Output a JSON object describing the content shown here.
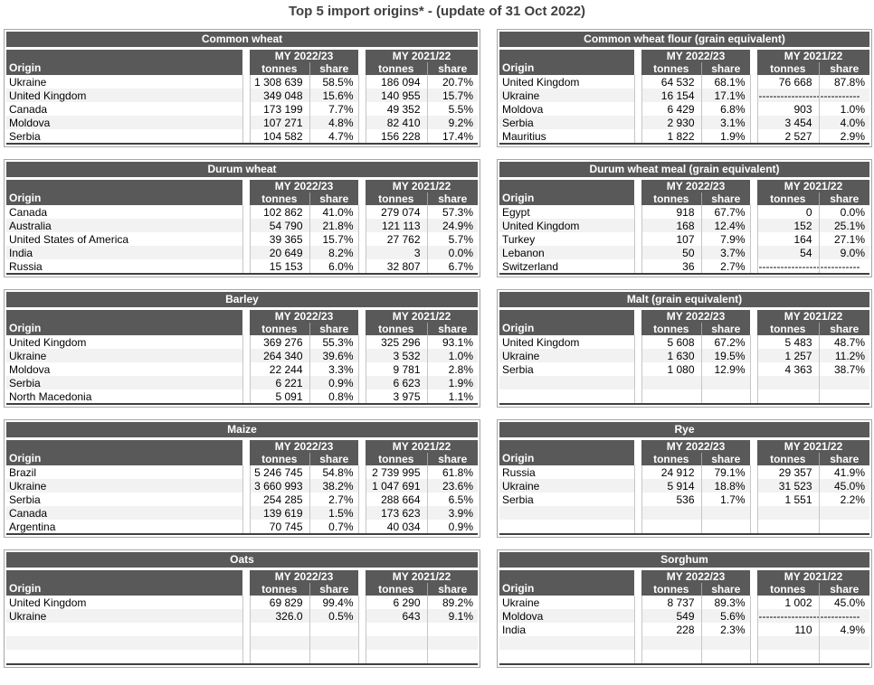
{
  "page": {
    "title": "Top 5 import origins* - (update of 31 Oct 2022)"
  },
  "colors": {
    "header_bg": "#595959",
    "header_text": "#ffffff",
    "alt_row_bg": "#f2f2f2",
    "grid_line": "#c6c6c6",
    "table_bottom_border": "#404040",
    "page_title_text": "#404040"
  },
  "column_headers": {
    "origin": "Origin",
    "year1": "MY 2022/23",
    "year2": "MY 2021/22",
    "tonnes": "tonnes",
    "share": "share"
  },
  "tables": [
    {
      "title": "Common wheat",
      "rows": [
        [
          "Ukraine",
          "1 308 639",
          "58.5%",
          "186 094",
          "20.7%"
        ],
        [
          "United Kingdom",
          "349 048",
          "15.6%",
          "140 955",
          "15.7%"
        ],
        [
          "Canada",
          "173 199",
          "7.7%",
          "49 352",
          "5.5%"
        ],
        [
          "Moldova",
          "107 271",
          "4.8%",
          "82 410",
          "9.2%"
        ],
        [
          "Serbia",
          "104 582",
          "4.7%",
          "156 228",
          "17.4%"
        ]
      ]
    },
    {
      "title": "Common wheat flour (grain equivalent)",
      "rows": [
        [
          "United Kingdom",
          "64 532",
          "68.1%",
          "76 668",
          "87.8%"
        ],
        [
          "Ukraine",
          "16 154",
          "17.1%",
          "-----------------",
          "-----------"
        ],
        [
          "Moldova",
          "6 429",
          "6.8%",
          "903",
          "1.0%"
        ],
        [
          "Serbia",
          "2 930",
          "3.1%",
          "3 454",
          "4.0%"
        ],
        [
          "Mauritius",
          "1 822",
          "1.9%",
          "2 527",
          "2.9%"
        ]
      ]
    },
    {
      "title": "Durum wheat",
      "rows": [
        [
          "Canada",
          "102 862",
          "41.0%",
          "279 074",
          "57.3%"
        ],
        [
          "Australia",
          "54 790",
          "21.8%",
          "121 113",
          "24.9%"
        ],
        [
          "United States of America",
          "39 365",
          "15.7%",
          "27 762",
          "5.7%"
        ],
        [
          "India",
          "20 649",
          "8.2%",
          "3",
          "0.0%"
        ],
        [
          "Russia",
          "15 153",
          "6.0%",
          "32 807",
          "6.7%"
        ]
      ]
    },
    {
      "title": "Durum wheat meal (grain equivalent)",
      "rows": [
        [
          "Egypt",
          "918",
          "67.7%",
          "0",
          "0.0%"
        ],
        [
          "United Kingdom",
          "168",
          "12.4%",
          "152",
          "25.1%"
        ],
        [
          "Turkey",
          "107",
          "7.9%",
          "164",
          "27.1%"
        ],
        [
          "Lebanon",
          "50",
          "3.7%",
          "54",
          "9.0%"
        ],
        [
          "Switzerland",
          "36",
          "2.7%",
          "-----------------",
          "-----------"
        ]
      ]
    },
    {
      "title": "Barley",
      "rows": [
        [
          "United Kingdom",
          "369 276",
          "55.3%",
          "325 296",
          "93.1%"
        ],
        [
          "Ukraine",
          "264 340",
          "39.6%",
          "3 532",
          "1.0%"
        ],
        [
          "Moldova",
          "22 244",
          "3.3%",
          "9 781",
          "2.8%"
        ],
        [
          "Serbia",
          "6 221",
          "0.9%",
          "6 623",
          "1.9%"
        ],
        [
          "North Macedonia",
          "5 091",
          "0.8%",
          "3 975",
          "1.1%"
        ]
      ]
    },
    {
      "title": "Malt (grain equivalent)",
      "rows": [
        [
          "United Kingdom",
          "5 608",
          "67.2%",
          "5 483",
          "48.7%"
        ],
        [
          "Ukraine",
          "1 630",
          "19.5%",
          "1 257",
          "11.2%"
        ],
        [
          "Serbia",
          "1 080",
          "12.9%",
          "4 363",
          "38.7%"
        ],
        [
          "",
          "",
          "",
          "",
          ""
        ],
        [
          "",
          "",
          "",
          "",
          ""
        ]
      ]
    },
    {
      "title": "Maize",
      "rows": [
        [
          "Brazil",
          "5 246 745",
          "54.8%",
          "2 739 995",
          "61.8%"
        ],
        [
          "Ukraine",
          "3 660 993",
          "38.2%",
          "1 047 691",
          "23.6%"
        ],
        [
          "Serbia",
          "254 285",
          "2.7%",
          "288 664",
          "6.5%"
        ],
        [
          "Canada",
          "139 619",
          "1.5%",
          "173 623",
          "3.9%"
        ],
        [
          "Argentina",
          "70 745",
          "0.7%",
          "40 034",
          "0.9%"
        ]
      ]
    },
    {
      "title": "Rye",
      "rows": [
        [
          "Russia",
          "24 912",
          "79.1%",
          "29 357",
          "41.9%"
        ],
        [
          "Ukraine",
          "5 914",
          "18.8%",
          "31 523",
          "45.0%"
        ],
        [
          "Serbia",
          "536",
          "1.7%",
          "1 551",
          "2.2%"
        ],
        [
          "",
          "",
          "",
          "",
          ""
        ],
        [
          "",
          "",
          "",
          "",
          ""
        ]
      ]
    },
    {
      "title": "Oats",
      "rows": [
        [
          "United Kingdom",
          "69 829",
          "99.4%",
          "6 290",
          "89.2%"
        ],
        [
          "Ukraine",
          "326.0",
          "0.5%",
          "643",
          "9.1%"
        ],
        [
          "",
          "",
          "",
          "",
          ""
        ],
        [
          "",
          "",
          "",
          "",
          ""
        ],
        [
          "",
          "",
          "",
          "",
          ""
        ]
      ]
    },
    {
      "title": "Sorghum",
      "rows": [
        [
          "Ukraine",
          "8 737",
          "89.3%",
          "1 002",
          "45.0%"
        ],
        [
          "Moldova",
          "549",
          "5.6%",
          "-----------------",
          "-----------"
        ],
        [
          "India",
          "228",
          "2.3%",
          "110",
          "4.9%"
        ],
        [
          "",
          "",
          "",
          "",
          ""
        ],
        [
          "",
          "",
          "",
          "",
          ""
        ]
      ]
    }
  ]
}
